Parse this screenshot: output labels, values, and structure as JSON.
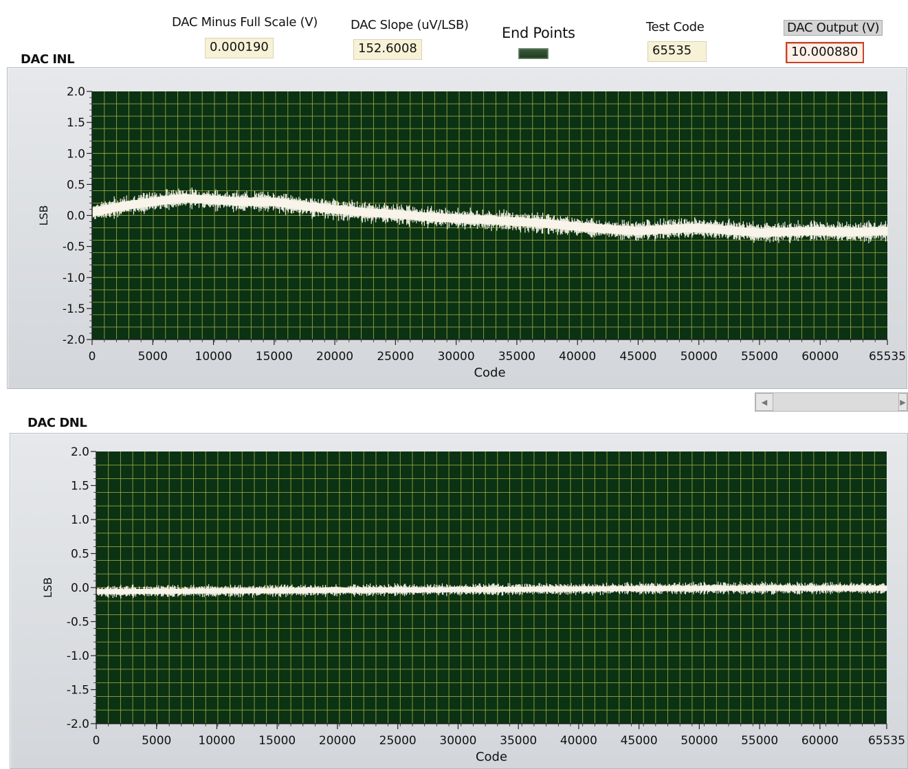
{
  "indicators": {
    "minus_full_scale": {
      "label": "DAC Minus Full Scale (V)",
      "value": "0.000190"
    },
    "slope": {
      "label": "DAC Slope (uV/LSB)",
      "value": "152.6008"
    },
    "end_points": {
      "label": "End Points"
    },
    "test_code": {
      "label": "Test Code",
      "value": "65535"
    },
    "output": {
      "label": "DAC Output (V)",
      "value": "10.000880"
    }
  },
  "colors": {
    "plot_bg": "#0a3213",
    "grid": "#c8c850",
    "trace": "#f8f4ea",
    "panel": "#d8dbdf"
  },
  "chart_data": [
    {
      "type": "line",
      "title": "DAC INL",
      "xlabel": "Code",
      "ylabel": "LSB",
      "xlim": [
        0,
        65535
      ],
      "ylim": [
        -2.0,
        2.0
      ],
      "x_ticks": [
        "0",
        "5000",
        "10000",
        "15000",
        "20000",
        "25000",
        "30000",
        "35000",
        "40000",
        "45000",
        "50000",
        "55000",
        "60000",
        "65535"
      ],
      "y_ticks": [
        "2.0",
        "1.5",
        "1.0",
        "0.5",
        "0.0",
        "-0.5",
        "-1.0",
        "-1.5",
        "-2.0"
      ],
      "grid": true,
      "x": [
        0,
        2500,
        5000,
        7500,
        10000,
        12500,
        15000,
        17500,
        20000,
        22500,
        25000,
        27500,
        30000,
        32500,
        35000,
        37500,
        40000,
        42500,
        45000,
        47500,
        50000,
        52500,
        55000,
        57500,
        60000,
        62500,
        65535
      ],
      "y": [
        0.05,
        0.15,
        0.22,
        0.28,
        0.25,
        0.22,
        0.22,
        0.15,
        0.1,
        0.05,
        0.02,
        -0.02,
        -0.05,
        -0.07,
        -0.1,
        -0.13,
        -0.18,
        -0.22,
        -0.25,
        -0.22,
        -0.2,
        -0.24,
        -0.28,
        -0.26,
        -0.25,
        -0.27,
        -0.25
      ],
      "noise_band": 0.15
    },
    {
      "type": "line",
      "title": "DAC DNL",
      "xlabel": "Code",
      "ylabel": "LSB",
      "xlim": [
        0,
        65535
      ],
      "ylim": [
        -2.0,
        2.0
      ],
      "x_ticks": [
        "0",
        "5000",
        "10000",
        "15000",
        "20000",
        "25000",
        "30000",
        "35000",
        "40000",
        "45000",
        "50000",
        "55000",
        "60000",
        "65535"
      ],
      "y_ticks": [
        "2.0",
        "1.5",
        "1.0",
        "0.5",
        "0.0",
        "-0.5",
        "-1.0",
        "-1.5",
        "-2.0"
      ],
      "grid": true,
      "x": [
        0,
        10000,
        20000,
        30000,
        40000,
        50000,
        60000,
        65535
      ],
      "y": [
        -0.06,
        -0.05,
        -0.04,
        -0.03,
        -0.02,
        -0.01,
        -0.01,
        -0.01
      ],
      "noise_band": 0.08
    }
  ]
}
